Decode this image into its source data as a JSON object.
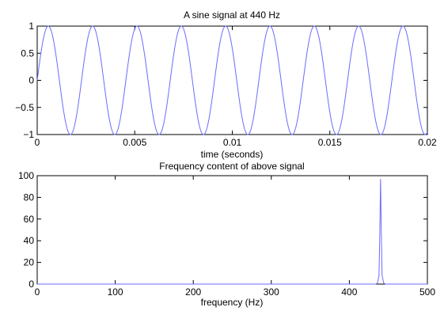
{
  "chart_data": [
    {
      "type": "line",
      "title": "A sine signal at 440 Hz",
      "xlabel": "time (seconds)",
      "ylabel": "",
      "xlim": [
        0,
        0.02
      ],
      "ylim": [
        -1,
        1
      ],
      "xticks": [
        0,
        0.005,
        0.01,
        0.015,
        0.02
      ],
      "xtick_labels": [
        "0",
        "0.005",
        "0.01",
        "0.015",
        "0.02"
      ],
      "yticks": [
        1,
        0.5,
        0,
        -0.5,
        -1
      ],
      "ytick_labels": [
        "1",
        "0.5",
        "0",
        "−0.5",
        "−1"
      ],
      "grid": false,
      "series": [
        {
          "frequency_hz": 440,
          "amplitude": 1,
          "function": "sin",
          "x_start": 0,
          "x_end": 0.02,
          "color": "#6b6bff"
        }
      ]
    },
    {
      "type": "line",
      "title": "Frequency content of above signal",
      "xlabel": "frequency (Hz)",
      "ylabel": "",
      "xlim": [
        0,
        500
      ],
      "ylim": [
        0,
        100
      ],
      "xticks": [
        0,
        100,
        200,
        300,
        400,
        500
      ],
      "xtick_labels": [
        "0",
        "100",
        "200",
        "300",
        "400",
        "500"
      ],
      "yticks": [
        100,
        80,
        60,
        40,
        20,
        0
      ],
      "ytick_labels": [
        "100",
        "80",
        "60",
        "40",
        "20",
        "0"
      ],
      "grid": false,
      "series": [
        {
          "color": "#6b6bff",
          "x": [
            0,
            434,
            436,
            438,
            439,
            440,
            441,
            442,
            444,
            446,
            500
          ],
          "y": [
            0,
            0,
            1,
            8,
            45,
            97,
            45,
            8,
            1,
            0,
            0
          ]
        }
      ]
    }
  ]
}
